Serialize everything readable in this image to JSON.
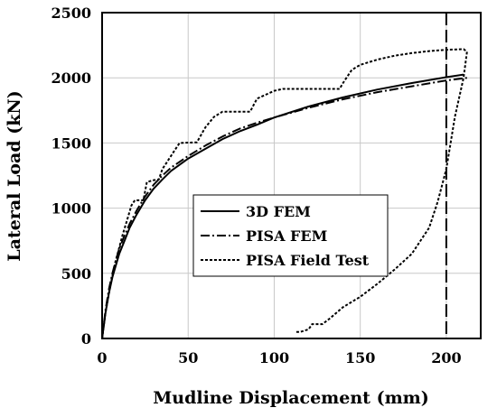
{
  "chart_data": {
    "type": "line",
    "xlabel": "Mudline Displacement (mm)",
    "ylabel": "Lateral Load (kN)",
    "xlim": [
      0,
      220
    ],
    "ylim": [
      0,
      2500
    ],
    "x_ticks": [
      0,
      50,
      100,
      150,
      200
    ],
    "y_ticks": [
      0,
      500,
      1000,
      1500,
      2000,
      2500
    ],
    "grid": true,
    "legend_position": "center",
    "vertical_marker_x": 200,
    "series": [
      {
        "name": "3D FEM",
        "style": "solid",
        "points": [
          [
            0,
            0
          ],
          [
            1,
            100
          ],
          [
            2,
            200
          ],
          [
            4,
            350
          ],
          [
            6,
            470
          ],
          [
            8,
            560
          ],
          [
            10,
            650
          ],
          [
            13,
            750
          ],
          [
            16,
            850
          ],
          [
            20,
            950
          ],
          [
            25,
            1060
          ],
          [
            30,
            1150
          ],
          [
            35,
            1220
          ],
          [
            40,
            1285
          ],
          [
            50,
            1380
          ],
          [
            60,
            1455
          ],
          [
            70,
            1530
          ],
          [
            80,
            1590
          ],
          [
            90,
            1640
          ],
          [
            100,
            1695
          ],
          [
            120,
            1780
          ],
          [
            140,
            1850
          ],
          [
            160,
            1910
          ],
          [
            180,
            1960
          ],
          [
            200,
            2005
          ],
          [
            210,
            2025
          ]
        ]
      },
      {
        "name": "PISA FEM",
        "style": "dash-dot",
        "points": [
          [
            0,
            0
          ],
          [
            1,
            110
          ],
          [
            2,
            220
          ],
          [
            4,
            380
          ],
          [
            6,
            500
          ],
          [
            8,
            600
          ],
          [
            10,
            690
          ],
          [
            13,
            790
          ],
          [
            16,
            880
          ],
          [
            20,
            980
          ],
          [
            25,
            1090
          ],
          [
            30,
            1180
          ],
          [
            35,
            1250
          ],
          [
            40,
            1310
          ],
          [
            50,
            1400
          ],
          [
            60,
            1480
          ],
          [
            70,
            1550
          ],
          [
            80,
            1610
          ],
          [
            90,
            1655
          ],
          [
            100,
            1695
          ],
          [
            120,
            1770
          ],
          [
            140,
            1835
          ],
          [
            160,
            1890
          ],
          [
            180,
            1935
          ],
          [
            200,
            1980
          ],
          [
            212,
            2000
          ]
        ]
      },
      {
        "name": "PISA Field Test",
        "style": "dashed",
        "points": [
          [
            0,
            0
          ],
          [
            2,
            200
          ],
          [
            5,
            420
          ],
          [
            8,
            600
          ],
          [
            12,
            800
          ],
          [
            15,
            930
          ],
          [
            17,
            1020
          ],
          [
            19,
            1060
          ],
          [
            24,
            1060
          ],
          [
            26,
            1200
          ],
          [
            30,
            1215
          ],
          [
            33,
            1220
          ],
          [
            35,
            1300
          ],
          [
            40,
            1400
          ],
          [
            45,
            1500
          ],
          [
            55,
            1505
          ],
          [
            60,
            1620
          ],
          [
            65,
            1700
          ],
          [
            70,
            1740
          ],
          [
            86,
            1740
          ],
          [
            90,
            1840
          ],
          [
            95,
            1870
          ],
          [
            100,
            1900
          ],
          [
            105,
            1915
          ],
          [
            138,
            1915
          ],
          [
            140,
            1960
          ],
          [
            145,
            2060
          ],
          [
            150,
            2100
          ],
          [
            160,
            2140
          ],
          [
            170,
            2170
          ],
          [
            180,
            2190
          ],
          [
            190,
            2205
          ],
          [
            200,
            2215
          ],
          [
            210,
            2220
          ],
          [
            212,
            2200
          ],
          [
            210,
            2000
          ],
          [
            205,
            1700
          ],
          [
            200,
            1300
          ],
          [
            195,
            1050
          ],
          [
            190,
            850
          ],
          [
            180,
            650
          ],
          [
            170,
            530
          ],
          [
            160,
            420
          ],
          [
            150,
            320
          ],
          [
            140,
            240
          ],
          [
            132,
            150
          ],
          [
            128,
            110
          ],
          [
            122,
            110
          ],
          [
            120,
            70
          ],
          [
            115,
            50
          ],
          [
            112,
            50
          ]
        ]
      }
    ]
  }
}
